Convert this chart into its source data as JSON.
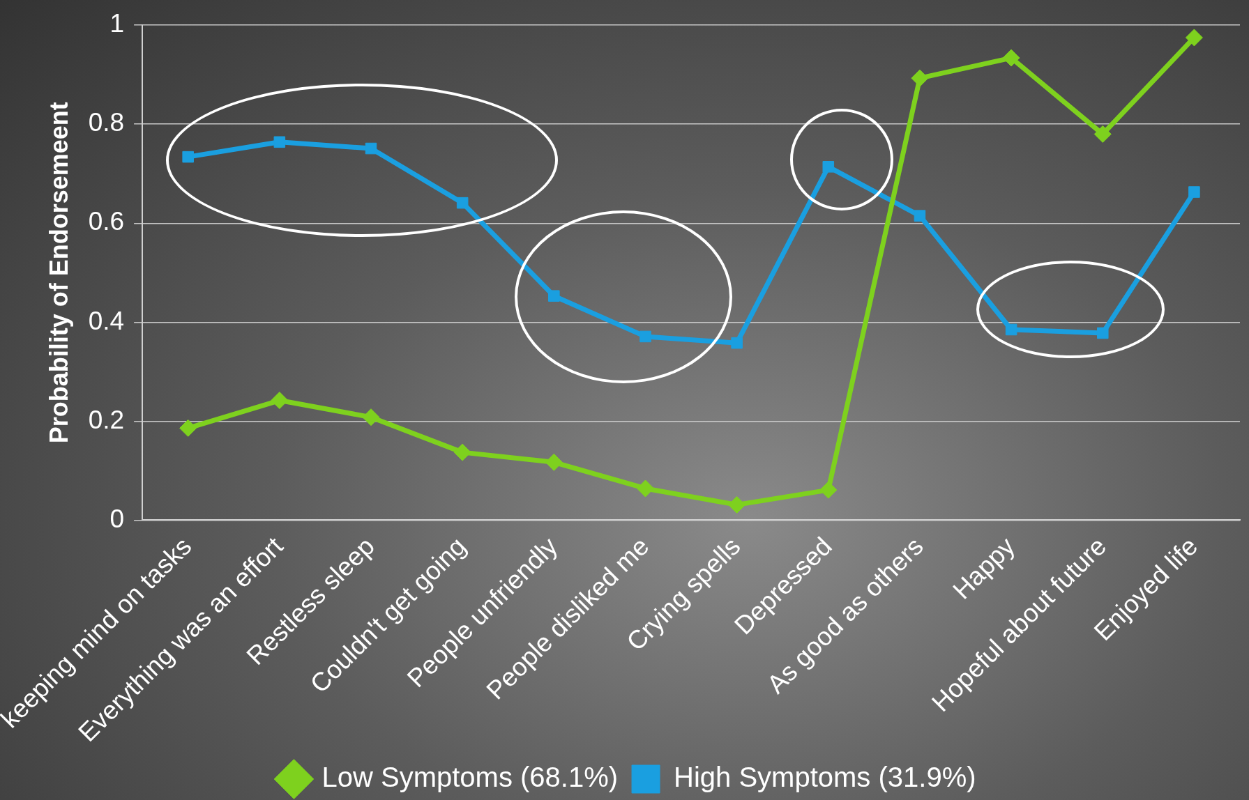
{
  "chart_data": {
    "type": "line",
    "ylabel": "Probability of Endorsemeent",
    "categories": [
      "keeping mind on tasks",
      "Everything was an effort",
      "Restless sleep",
      "Couldn't get going",
      "People unfriendly",
      "People disliked me",
      "Crying spells",
      "Depressed",
      "As good as others",
      "Happy",
      "Hopeful about future",
      "Enjoyed life"
    ],
    "series": [
      {
        "name": "Low Symptoms (68.1%)",
        "color": "#7ed11e",
        "marker": "diamond",
        "values": [
          0.186,
          0.242,
          0.208,
          0.137,
          0.117,
          0.064,
          0.031,
          0.061,
          0.893,
          0.934,
          0.78,
          0.975
        ]
      },
      {
        "name": "High Symptoms (31.9%)",
        "color": "#1a9fe0",
        "marker": "square",
        "values": [
          0.734,
          0.764,
          0.751,
          0.641,
          0.453,
          0.371,
          0.358,
          0.714,
          0.615,
          0.385,
          0.378,
          0.663
        ]
      }
    ],
    "ylim": [
      0,
      1
    ],
    "yticks": [
      0,
      0.2,
      0.4,
      0.6,
      0.8,
      1
    ],
    "grid": "y",
    "legend": "bottom",
    "line_style": "solid"
  }
}
